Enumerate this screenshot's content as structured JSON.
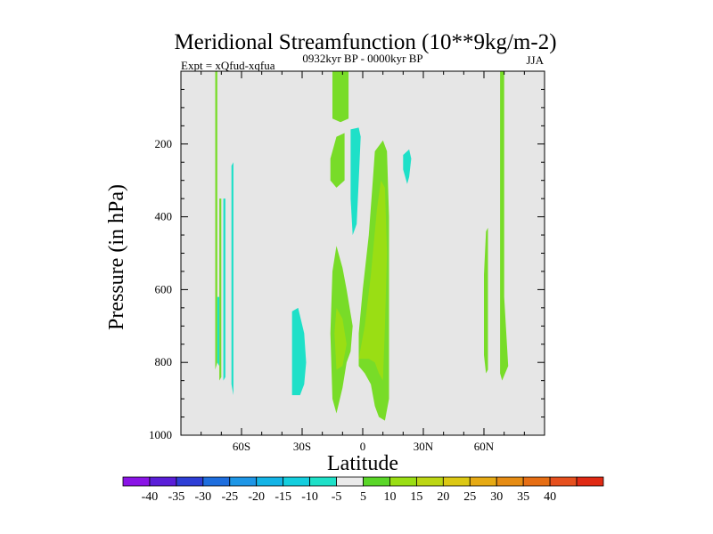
{
  "chart_data": {
    "type": "heatmap",
    "title": "Meridional Streamfunction (10**9kg/m-2)",
    "subtitle_left": "Expt = xQfud-xqfua",
    "subtitle_center": "0932kyr BP - 0000kyr BP",
    "subtitle_right": "JJA",
    "xlabel": "Latitude",
    "ylabel": "Pressure (in hPa)",
    "xlim": [
      -90,
      90
    ],
    "ylim": [
      0,
      1000
    ],
    "y_inverted": true,
    "x_ticks": [
      {
        "value": -60,
        "label": "60S"
      },
      {
        "value": -30,
        "label": "30S"
      },
      {
        "value": 0,
        "label": "0"
      },
      {
        "value": 30,
        "label": "30N"
      },
      {
        "value": 60,
        "label": "60N"
      }
    ],
    "y_ticks": [
      {
        "value": 200,
        "label": "200"
      },
      {
        "value": 400,
        "label": "400"
      },
      {
        "value": 600,
        "label": "600"
      },
      {
        "value": 800,
        "label": "800"
      },
      {
        "value": 1000,
        "label": "1000"
      }
    ],
    "colorbar": {
      "colors": [
        "#8a14e6",
        "#5a1ed8",
        "#2e3ed6",
        "#1e6ede",
        "#1e96e6",
        "#14b4e6",
        "#14cede",
        "#1ee0c8",
        "#eaeaea",
        "#5ad628",
        "#9ade14",
        "#bcd614",
        "#dcc814",
        "#e6aa14",
        "#e68c14",
        "#e66e14",
        "#e6501e",
        "#e02a14"
      ],
      "labels": [
        "-40",
        "-35",
        "-30",
        "-25",
        "-20",
        "-15",
        "-10",
        "-5",
        "5",
        "10",
        "15",
        "20",
        "25",
        "30",
        "35",
        "40"
      ]
    },
    "background_color": "#e6e6e6",
    "contours": [
      {
        "level": 5,
        "color": "#78dc28",
        "points": [
          [
            -73,
            0
          ],
          [
            -72,
            0
          ],
          [
            -72,
            800
          ],
          [
            -73,
            820
          ]
        ]
      },
      {
        "level": 5,
        "color": "#78dc28",
        "points": [
          [
            -71,
            350
          ],
          [
            -70,
            350
          ],
          [
            -70,
            840
          ],
          [
            -71,
            850
          ]
        ]
      },
      {
        "level": -5,
        "color": "#1ee0c8",
        "points": [
          [
            -72,
            620
          ],
          [
            -71,
            620
          ],
          [
            -71,
            810
          ],
          [
            -72,
            800
          ]
        ]
      },
      {
        "level": -5,
        "color": "#1ee0c8",
        "points": [
          [
            -69,
            350
          ],
          [
            -68,
            350
          ],
          [
            -68,
            840
          ],
          [
            -69,
            850
          ]
        ]
      },
      {
        "level": -5,
        "color": "#1ee0c8",
        "points": [
          [
            -65,
            260
          ],
          [
            -64,
            250
          ],
          [
            -64,
            890
          ],
          [
            -65,
            860
          ]
        ]
      },
      {
        "level": 5,
        "color": "#78dc28",
        "points": [
          [
            -15,
            0
          ],
          [
            -7,
            0
          ],
          [
            -7,
            130
          ],
          [
            -11,
            140
          ],
          [
            -15,
            130
          ]
        ]
      },
      {
        "level": 5,
        "color": "#78dc28",
        "points": [
          [
            -16,
            240
          ],
          [
            -13,
            180
          ],
          [
            -9,
            170
          ],
          [
            -9,
            300
          ],
          [
            -13,
            320
          ],
          [
            -16,
            300
          ]
        ]
      },
      {
        "level": -5,
        "color": "#1ee0c8",
        "points": [
          [
            -6,
            160
          ],
          [
            -2,
            155
          ],
          [
            -1,
            180
          ],
          [
            -2,
            300
          ],
          [
            -3,
            420
          ],
          [
            -5,
            450
          ],
          [
            -6,
            350
          ]
        ]
      },
      {
        "level": 5,
        "color": "#78dc28",
        "points": [
          [
            -16,
            720
          ],
          [
            -15,
            550
          ],
          [
            -13,
            480
          ],
          [
            -10,
            540
          ],
          [
            -8,
            600
          ],
          [
            -5,
            700
          ],
          [
            -6,
            770
          ],
          [
            -8,
            800
          ],
          [
            -10,
            870
          ],
          [
            -13,
            940
          ],
          [
            -15,
            900
          ]
        ]
      },
      {
        "level": 5,
        "color": "#78dc28",
        "points": [
          [
            -2,
            720
          ],
          [
            0,
            600
          ],
          [
            3,
            450
          ],
          [
            5,
            300
          ],
          [
            6,
            220
          ],
          [
            10,
            190
          ],
          [
            12,
            220
          ],
          [
            13,
            400
          ],
          [
            13,
            600
          ],
          [
            13,
            900
          ],
          [
            11,
            960
          ],
          [
            8,
            950
          ],
          [
            6,
            920
          ],
          [
            4,
            860
          ],
          [
            1,
            830
          ],
          [
            -2,
            810
          ]
        ]
      },
      {
        "level": 10,
        "color": "#9ade14",
        "points": [
          [
            -14,
            720
          ],
          [
            -13,
            650
          ],
          [
            -10,
            680
          ],
          [
            -8,
            750
          ],
          [
            -10,
            810
          ],
          [
            -13,
            820
          ]
        ]
      },
      {
        "level": 10,
        "color": "#9ade14",
        "points": [
          [
            -2,
            790
          ],
          [
            1,
            700
          ],
          [
            4,
            560
          ],
          [
            7,
            380
          ],
          [
            9,
            300
          ],
          [
            11,
            320
          ],
          [
            12,
            500
          ],
          [
            11,
            700
          ],
          [
            10,
            850
          ],
          [
            8,
            830
          ],
          [
            6,
            800
          ],
          [
            3,
            790
          ]
        ]
      },
      {
        "level": -5,
        "color": "#1ee0c8",
        "points": [
          [
            20,
            230
          ],
          [
            23,
            215
          ],
          [
            24,
            240
          ],
          [
            23,
            290
          ],
          [
            22,
            310
          ],
          [
            20,
            270
          ]
        ]
      },
      {
        "level": -5,
        "color": "#1ee0c8",
        "points": [
          [
            -35,
            660
          ],
          [
            -32,
            650
          ],
          [
            -29,
            720
          ],
          [
            -28,
            800
          ],
          [
            -29,
            860
          ],
          [
            -31,
            890
          ],
          [
            -35,
            890
          ]
        ]
      },
      {
        "level": 5,
        "color": "#78dc28",
        "points": [
          [
            61,
            440
          ],
          [
            62,
            430
          ],
          [
            62,
            820
          ],
          [
            61,
            830
          ],
          [
            60,
            780
          ],
          [
            60,
            560
          ]
        ]
      },
      {
        "level": 5,
        "color": "#78dc28",
        "points": [
          [
            68,
            0
          ],
          [
            70,
            0
          ],
          [
            70,
            620
          ],
          [
            72,
            810
          ],
          [
            69,
            850
          ],
          [
            68,
            830
          ]
        ]
      }
    ]
  }
}
